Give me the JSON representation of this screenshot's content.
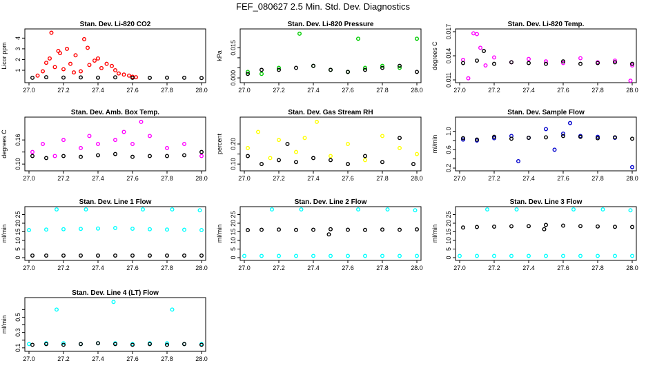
{
  "page": {
    "title": "FEF_080627  2.5 Min. Std. Dev. Diagnostics"
  },
  "chart_data": [
    {
      "type": "scatter",
      "title": "Stan. Dev. Li-820 CO2",
      "xlabel": "",
      "ylabel": "Licor ppm",
      "xlim": [
        27.0,
        28.0
      ],
      "ylim": [
        0.1,
        4.6
      ],
      "xticks": [
        "27.0",
        "27.2",
        "27.4",
        "27.6",
        "27.8",
        "28.0"
      ],
      "yticks": [
        1,
        2,
        3,
        4
      ],
      "series": [
        {
          "name": "primary",
          "color": "#ff0000",
          "x": [
            27.05,
            27.08,
            27.1,
            27.12,
            27.13,
            27.15,
            27.17,
            27.18,
            27.2,
            27.22,
            27.24,
            27.26,
            27.27,
            27.3,
            27.32,
            27.34,
            27.35,
            27.38,
            27.4,
            27.42,
            27.45,
            27.48,
            27.5,
            27.52,
            27.55,
            27.58,
            27.6,
            27.62
          ],
          "y": [
            0.5,
            0.9,
            1.7,
            2.1,
            4.5,
            1.3,
            2.8,
            2.6,
            1.1,
            3.0,
            1.6,
            0.8,
            2.4,
            0.9,
            3.9,
            3.1,
            1.5,
            1.9,
            2.1,
            1.2,
            1.6,
            1.4,
            1.0,
            0.7,
            0.6,
            0.5,
            0.4,
            0.35
          ]
        },
        {
          "name": "reference",
          "color": "#000000",
          "x": [
            27.02,
            27.1,
            27.2,
            27.3,
            27.4,
            27.5,
            27.6,
            27.7,
            27.8,
            27.9,
            28.0
          ],
          "y": [
            0.3,
            0.35,
            0.32,
            0.33,
            0.31,
            0.34,
            0.3,
            0.29,
            0.31,
            0.3,
            0.28
          ]
        }
      ]
    },
    {
      "type": "scatter",
      "title": "Stan. Dev. Li-820 Pressure",
      "xlabel": "",
      "ylabel": "kPa",
      "xlim": [
        27.0,
        28.0
      ],
      "ylim": [
        -0.001,
        0.023
      ],
      "xticks": [
        "27.0",
        "27.2",
        "27.4",
        "27.6",
        "27.8",
        "28.0"
      ],
      "yticks": [
        0.0,
        0.005,
        0.01,
        0.015
      ],
      "ytick_labels": [
        "0.000",
        "",
        "",
        "0.015"
      ],
      "series": [
        {
          "name": "primary",
          "color": "#00cc00",
          "x": [
            27.02,
            27.1,
            27.2,
            27.32,
            27.4,
            27.5,
            27.6,
            27.66,
            27.7,
            27.8,
            27.9,
            28.0
          ],
          "y": [
            0.003,
            0.002,
            0.005,
            0.022,
            0.006,
            0.004,
            0.003,
            0.0195,
            0.005,
            0.006,
            0.005,
            0.0195
          ]
        },
        {
          "name": "reference",
          "color": "#000000",
          "x": [
            27.02,
            27.1,
            27.2,
            27.3,
            27.4,
            27.5,
            27.6,
            27.7,
            27.8,
            27.9,
            28.0
          ],
          "y": [
            0.002,
            0.004,
            0.004,
            0.005,
            0.006,
            0.004,
            0.003,
            0.004,
            0.005,
            0.006,
            0.003
          ]
        }
      ]
    },
    {
      "type": "scatter",
      "title": "Stan. Dev. Li-820 Temp.",
      "xlabel": "",
      "ylabel": "degrees C",
      "xlim": [
        27.0,
        28.0
      ],
      "ylim": [
        0.011,
        0.017
      ],
      "xticks": [
        "27.0",
        "27.2",
        "27.4",
        "27.6",
        "27.8",
        "28.0"
      ],
      "yticks": [
        0.011,
        0.014,
        0.017
      ],
      "series": [
        {
          "name": "primary",
          "color": "#ff00ff",
          "x": [
            27.02,
            27.05,
            27.08,
            27.1,
            27.12,
            27.15,
            27.2,
            27.3,
            27.4,
            27.5,
            27.6,
            27.7,
            27.8,
            27.9,
            28.0,
            27.99
          ],
          "y": [
            0.0135,
            0.0112,
            0.0168,
            0.0167,
            0.015,
            0.0128,
            0.0138,
            0.0132,
            0.0136,
            0.0133,
            0.0131,
            0.0137,
            0.0132,
            0.0134,
            0.0128,
            0.0109
          ]
        },
        {
          "name": "reference",
          "color": "#000000",
          "x": [
            27.02,
            27.1,
            27.14,
            27.2,
            27.3,
            27.4,
            27.5,
            27.6,
            27.7,
            27.8,
            27.9,
            28.0
          ],
          "y": [
            0.0131,
            0.0134,
            0.0146,
            0.013,
            0.0132,
            0.0131,
            0.013,
            0.0133,
            0.013,
            0.0131,
            0.0132,
            0.013
          ]
        }
      ]
    },
    {
      "type": "scatter",
      "title": "Stan. Dev. Amb. Box Temp.",
      "xlabel": "",
      "ylabel": "degrees C",
      "xlim": [
        27.0,
        28.0
      ],
      "ylim": [
        0.09,
        0.21
      ],
      "xticks": [
        "27.0",
        "27.2",
        "27.4",
        "27.6",
        "27.8",
        "28.0"
      ],
      "yticks": [
        0.1,
        0.13,
        0.16
      ],
      "ytick_labels": [
        "0.10",
        "",
        "0.16"
      ],
      "series": [
        {
          "name": "primary",
          "color": "#ff00ff",
          "x": [
            27.02,
            27.08,
            27.15,
            27.2,
            27.3,
            27.35,
            27.4,
            27.5,
            27.55,
            27.6,
            27.65,
            27.7,
            27.8,
            27.9,
            28.0
          ],
          "y": [
            0.13,
            0.15,
            0.12,
            0.16,
            0.14,
            0.17,
            0.15,
            0.16,
            0.18,
            0.15,
            0.205,
            0.17,
            0.14,
            0.15,
            0.12
          ]
        },
        {
          "name": "reference",
          "color": "#000000",
          "x": [
            27.02,
            27.1,
            27.2,
            27.3,
            27.4,
            27.5,
            27.6,
            27.7,
            27.8,
            27.9,
            28.0
          ],
          "y": [
            0.12,
            0.115,
            0.12,
            0.118,
            0.122,
            0.125,
            0.118,
            0.12,
            0.12,
            0.122,
            0.13
          ]
        }
      ]
    },
    {
      "type": "scatter",
      "title": "Stan. Dev. Gas Stream RH",
      "xlabel": "",
      "ylabel": "percent",
      "xlim": [
        27.0,
        28.0
      ],
      "ylim": [
        0.08,
        0.32
      ],
      "xticks": [
        "27.0",
        "27.2",
        "27.4",
        "27.6",
        "27.8",
        "28.0"
      ],
      "yticks": [
        0.1,
        0.15,
        0.2
      ],
      "ytick_labels": [
        "0.10",
        "",
        "0.20"
      ],
      "series": [
        {
          "name": "primary",
          "color": "#ffff00",
          "x": [
            27.02,
            27.08,
            27.15,
            27.2,
            27.3,
            27.35,
            27.42,
            27.5,
            27.6,
            27.7,
            27.8,
            27.9,
            28.0
          ],
          "y": [
            0.18,
            0.26,
            0.13,
            0.22,
            0.16,
            0.23,
            0.31,
            0.14,
            0.2,
            0.12,
            0.24,
            0.18,
            0.15
          ]
        },
        {
          "name": "reference",
          "color": "#000000",
          "x": [
            27.02,
            27.1,
            27.2,
            27.25,
            27.3,
            27.4,
            27.5,
            27.6,
            27.7,
            27.8,
            27.9,
            27.98
          ],
          "y": [
            0.14,
            0.1,
            0.12,
            0.2,
            0.11,
            0.13,
            0.12,
            0.1,
            0.14,
            0.11,
            0.23,
            0.1
          ]
        }
      ]
    },
    {
      "type": "scatter",
      "title": "Stan. Dev. Sample Flow",
      "xlabel": "",
      "ylabel": "ml/min",
      "xlim": [
        27.0,
        28.0
      ],
      "ylim": [
        0.2,
        1.25
      ],
      "xticks": [
        "27.0",
        "27.2",
        "27.4",
        "27.6",
        "27.8",
        "28.0"
      ],
      "yticks": [
        0.2,
        0.4,
        0.6,
        0.8,
        1.0
      ],
      "ytick_labels": [
        "0.2",
        "",
        "0.6",
        "",
        "1.0"
      ],
      "series": [
        {
          "name": "primary",
          "color": "#0000cc",
          "x": [
            27.02,
            27.1,
            27.2,
            27.3,
            27.34,
            27.4,
            27.5,
            27.55,
            27.6,
            27.64,
            27.7,
            27.8,
            27.9,
            28.0
          ],
          "y": [
            0.82,
            0.8,
            0.85,
            0.9,
            0.35,
            0.86,
            1.05,
            0.6,
            0.95,
            1.18,
            0.9,
            0.88,
            0.86,
            0.22
          ]
        },
        {
          "name": "reference",
          "color": "#000000",
          "x": [
            27.02,
            27.1,
            27.2,
            27.3,
            27.4,
            27.5,
            27.6,
            27.7,
            27.8,
            27.9,
            28.0
          ],
          "y": [
            0.85,
            0.82,
            0.88,
            0.84,
            0.86,
            0.87,
            0.9,
            0.88,
            0.85,
            0.87,
            0.84
          ]
        }
      ]
    },
    {
      "type": "scatter",
      "title": "Stan. Dev. Line 1 Flow",
      "xlabel": "",
      "ylabel": "ml/min",
      "xlim": [
        27.0,
        28.0
      ],
      "ylim": [
        0,
        28
      ],
      "xticks": [
        "27.0",
        "27.2",
        "27.4",
        "27.6",
        "27.8",
        "28.0"
      ],
      "yticks": [
        0,
        5,
        10,
        15,
        20,
        25
      ],
      "series": [
        {
          "name": "primary",
          "color": "#00ffff",
          "x": [
            27.0,
            27.1,
            27.16,
            27.2,
            27.3,
            27.33,
            27.4,
            27.5,
            27.6,
            27.66,
            27.7,
            27.8,
            27.83,
            27.9,
            28.0,
            27.99
          ],
          "y": [
            16,
            16.3,
            28,
            16.5,
            16.7,
            28,
            16.9,
            17.2,
            16.8,
            28,
            16.5,
            16.3,
            28,
            16.2,
            16,
            27.5
          ]
        },
        {
          "name": "reference",
          "color": "#000000",
          "x": [
            27.02,
            27.1,
            27.2,
            27.3,
            27.4,
            27.5,
            27.6,
            27.7,
            27.8,
            27.9,
            28.0
          ],
          "y": [
            1.2,
            1.2,
            1.2,
            1.2,
            1.2,
            1.2,
            1.2,
            1.2,
            1.2,
            1.2,
            1.2
          ]
        }
      ]
    },
    {
      "type": "scatter",
      "title": "Stan. Dev. Line 2 Flow",
      "xlabel": "",
      "ylabel": "ml/min",
      "xlim": [
        27.0,
        28.0
      ],
      "ylim": [
        0,
        28
      ],
      "xticks": [
        "27.0",
        "27.2",
        "27.4",
        "27.6",
        "27.8",
        "28.0"
      ],
      "yticks": [
        0,
        5,
        10,
        15,
        20,
        25
      ],
      "series": [
        {
          "name": "primary",
          "color": "#00ffff",
          "x": [
            27.0,
            27.1,
            27.16,
            27.2,
            27.3,
            27.33,
            27.4,
            27.5,
            27.6,
            27.66,
            27.7,
            27.8,
            27.83,
            27.9,
            28.0,
            27.99
          ],
          "y": [
            1,
            1,
            28,
            1,
            1,
            28,
            1,
            1,
            1,
            28,
            1,
            1,
            28,
            1,
            1,
            27.5
          ]
        },
        {
          "name": "reference",
          "color": "#000000",
          "x": [
            27.02,
            27.1,
            27.2,
            27.3,
            27.4,
            27.49,
            27.5,
            27.6,
            27.7,
            27.8,
            27.9,
            28.0
          ],
          "y": [
            16,
            16.2,
            16.3,
            16.1,
            16.2,
            13.5,
            16.5,
            16.2,
            16.1,
            16.3,
            16.2,
            16.4
          ]
        }
      ]
    },
    {
      "type": "scatter",
      "title": "Stan. Dev. Line 3 Flow",
      "xlabel": "",
      "ylabel": "ml/min",
      "xlim": [
        27.0,
        28.0
      ],
      "ylim": [
        0,
        28
      ],
      "xticks": [
        "27.0",
        "27.2",
        "27.4",
        "27.6",
        "27.8",
        "28.0"
      ],
      "yticks": [
        0,
        5,
        10,
        15,
        20,
        25
      ],
      "series": [
        {
          "name": "primary",
          "color": "#00ffff",
          "x": [
            27.0,
            27.1,
            27.16,
            27.2,
            27.3,
            27.33,
            27.4,
            27.5,
            27.6,
            27.66,
            27.7,
            27.8,
            27.83,
            27.9,
            28.0,
            27.99
          ],
          "y": [
            1,
            1,
            28,
            1,
            1,
            28,
            1,
            1,
            1,
            28,
            1,
            1,
            28,
            1,
            1,
            27.5
          ]
        },
        {
          "name": "reference",
          "color": "#000000",
          "x": [
            27.02,
            27.1,
            27.2,
            27.3,
            27.4,
            27.49,
            27.5,
            27.6,
            27.7,
            27.8,
            27.9,
            28.0
          ],
          "y": [
            17.5,
            17.8,
            18,
            18.2,
            18.3,
            16.5,
            19,
            18.6,
            18.3,
            18.1,
            17.9,
            17.8
          ]
        }
      ]
    },
    {
      "type": "scatter",
      "title": "Stan. Dev. Line 4 (LT) Flow",
      "xlabel": "",
      "ylabel": "ml/min",
      "xlim": [
        27.0,
        28.0
      ],
      "ylim": [
        0.09,
        0.72
      ],
      "xticks": [
        "27.0",
        "27.2",
        "27.4",
        "27.6",
        "27.8",
        "28.0"
      ],
      "yticks": [
        0.1,
        0.2,
        0.3,
        0.4,
        0.5,
        0.6
      ],
      "ytick_labels": [
        "0.1",
        "",
        "0.3",
        "",
        "0.5",
        ""
      ],
      "series": [
        {
          "name": "primary",
          "color": "#00ffff",
          "x": [
            27.0,
            27.1,
            27.16,
            27.2,
            27.3,
            27.4,
            27.49,
            27.5,
            27.6,
            27.7,
            27.8,
            27.83,
            27.9,
            28.0
          ],
          "y": [
            0.15,
            0.16,
            0.6,
            0.16,
            0.15,
            0.16,
            0.7,
            0.16,
            0.15,
            0.16,
            0.16,
            0.6,
            0.15,
            0.15
          ]
        },
        {
          "name": "reference",
          "color": "#000000",
          "x": [
            27.02,
            27.1,
            27.2,
            27.3,
            27.4,
            27.5,
            27.6,
            27.7,
            27.8,
            27.9,
            28.0
          ],
          "y": [
            0.14,
            0.15,
            0.14,
            0.15,
            0.16,
            0.15,
            0.14,
            0.15,
            0.14,
            0.15,
            0.14
          ]
        }
      ]
    }
  ]
}
